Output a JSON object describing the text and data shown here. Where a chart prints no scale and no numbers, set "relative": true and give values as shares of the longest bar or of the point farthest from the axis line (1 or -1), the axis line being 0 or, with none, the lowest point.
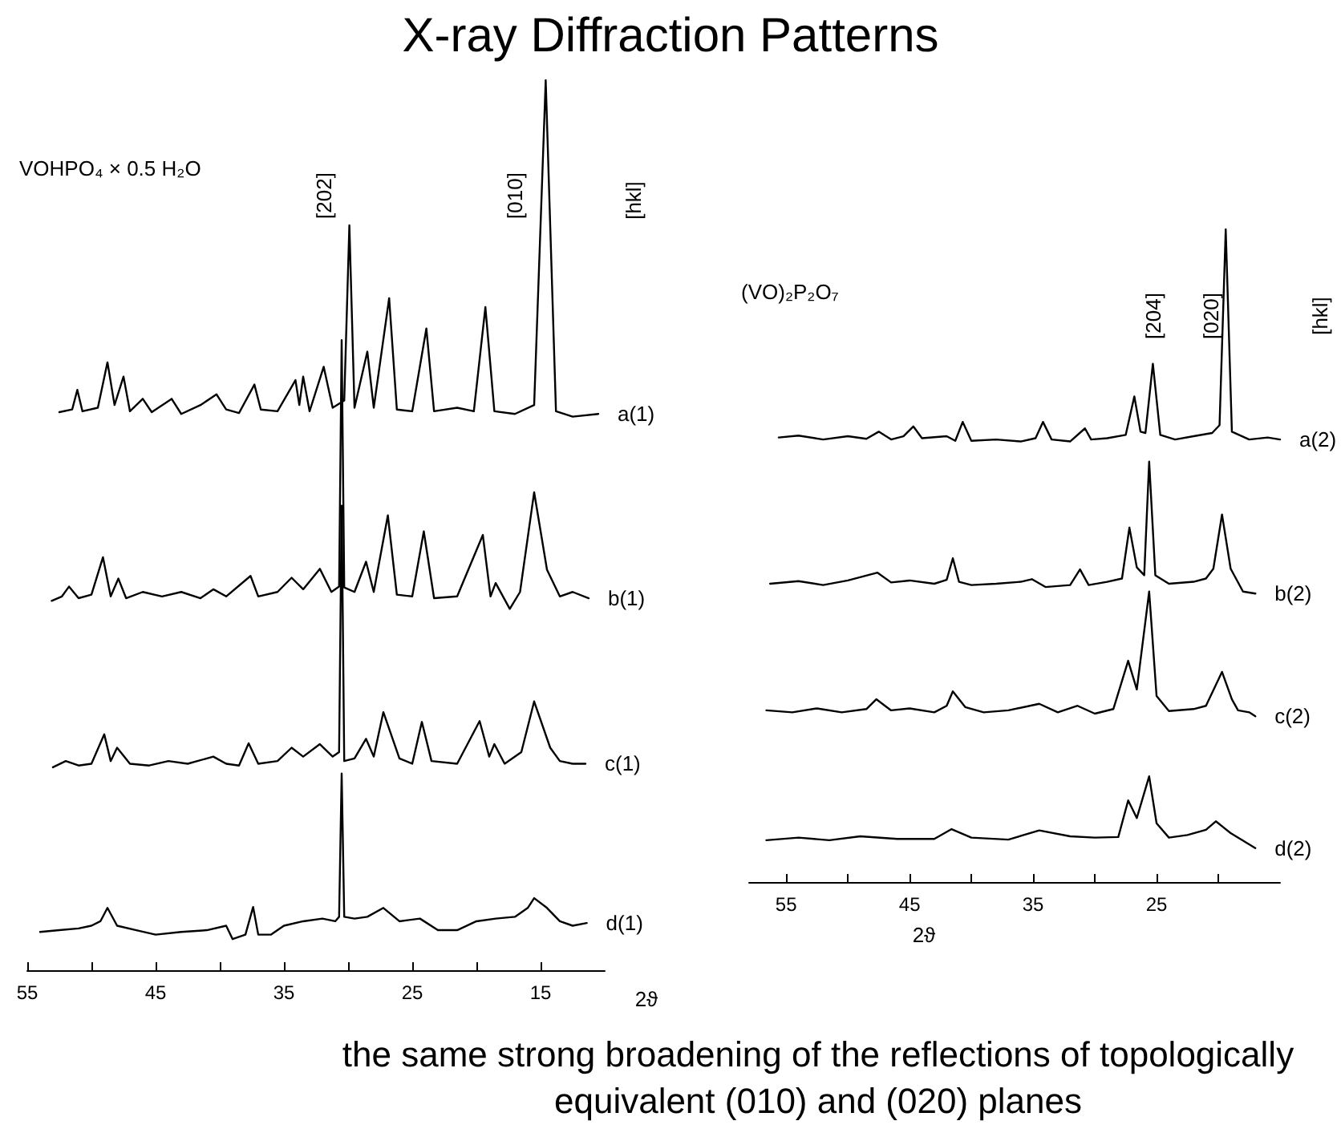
{
  "chart_data": [
    {
      "type": "line",
      "title": "X-ray Diffraction Patterns",
      "xlabel": "2ϑ",
      "relative": true,
      "marker": "none",
      "line_style": "solid",
      "xlim": [
        55,
        10
      ],
      "xticks": [
        55,
        {
          "value": 50,
          "label": null
        },
        45,
        {
          "value": 40,
          "label": null
        },
        35,
        {
          "value": 30,
          "label": null
        },
        25,
        {
          "value": 20,
          "label": null
        },
        15
      ],
      "annotations": [
        "VOHPO₄ × 0.5 H₂O",
        "[hkl]",
        "[202]",
        "[010]"
      ],
      "series": [
        {
          "name": "a(1)",
          "color": "#000000",
          "x": [
            52.5,
            51.5,
            51.1,
            50.7,
            49.5,
            48.75,
            48.2,
            47.5,
            47.0,
            46.0,
            45.3,
            43.75,
            43.0,
            41.5,
            40.25,
            39.5,
            38.5,
            37.3,
            36.8,
            35.5,
            34.1,
            33.8,
            33.5,
            33.0,
            31.9,
            31.2,
            30.3,
            29.9,
            29.5,
            28.5,
            28.0,
            26.8,
            26.2,
            25.0,
            23.9,
            23.3,
            21.5,
            20.2,
            19.3,
            18.6,
            17.0,
            15.5,
            14.6,
            13.8,
            12.5,
            10.5
          ],
          "values": [
            0.627,
            0.63,
            0.652,
            0.628,
            0.632,
            0.683,
            0.635,
            0.667,
            0.628,
            0.642,
            0.627,
            0.642,
            0.625,
            0.635,
            0.647,
            0.63,
            0.626,
            0.658,
            0.63,
            0.628,
            0.663,
            0.635,
            0.667,
            0.628,
            0.678,
            0.632,
            0.64,
            0.837,
            0.632,
            0.695,
            0.632,
            0.755,
            0.63,
            0.628,
            0.721,
            0.628,
            0.632,
            0.628,
            0.745,
            0.628,
            0.625,
            0.635,
            1.0,
            0.628,
            0.622,
            0.625
          ]
        },
        {
          "name": "b(1)",
          "color": "#000000",
          "x": [
            53.1,
            52.3,
            51.75,
            51.0,
            50.0,
            49.1,
            48.5,
            47.9,
            47.3,
            46.0,
            44.5,
            43.0,
            41.5,
            40.5,
            39.5,
            37.6,
            37.0,
            35.5,
            34.4,
            33.5,
            32.2,
            31.3,
            30.7,
            30.5,
            30.3,
            29.5,
            28.6,
            28.0,
            26.9,
            26.2,
            25.0,
            24.1,
            23.3,
            21.5,
            19.5,
            18.9,
            18.5,
            17.4,
            16.6,
            15.5,
            14.5,
            13.5,
            12.5,
            11.25
          ],
          "values": [
            0.415,
            0.42,
            0.431,
            0.418,
            0.422,
            0.464,
            0.42,
            0.44,
            0.418,
            0.425,
            0.42,
            0.425,
            0.418,
            0.428,
            0.42,
            0.443,
            0.42,
            0.425,
            0.441,
            0.428,
            0.451,
            0.425,
            0.431,
            0.708,
            0.43,
            0.425,
            0.459,
            0.425,
            0.511,
            0.422,
            0.42,
            0.493,
            0.418,
            0.42,
            0.489,
            0.42,
            0.435,
            0.406,
            0.425,
            0.537,
            0.45,
            0.42,
            0.425,
            0.418
          ]
        },
        {
          "name": "c(1)",
          "color": "#000000",
          "x": [
            53.0,
            52.0,
            51.0,
            50.0,
            49.0,
            48.5,
            48.0,
            47.0,
            45.5,
            44.0,
            42.5,
            40.5,
            39.5,
            38.5,
            37.75,
            37.0,
            35.5,
            34.4,
            33.5,
            32.2,
            31.2,
            30.7,
            30.5,
            30.3,
            29.5,
            28.6,
            28.0,
            27.25,
            26.0,
            25.0,
            24.25,
            23.5,
            21.5,
            19.75,
            19.0,
            18.6,
            17.8,
            16.5,
            15.5,
            14.25,
            13.5,
            12.5,
            11.5
          ],
          "values": [
            0.228,
            0.235,
            0.23,
            0.232,
            0.265,
            0.235,
            0.25,
            0.232,
            0.23,
            0.235,
            0.232,
            0.24,
            0.232,
            0.23,
            0.255,
            0.232,
            0.235,
            0.25,
            0.24,
            0.254,
            0.24,
            0.245,
            0.522,
            0.235,
            0.238,
            0.26,
            0.24,
            0.29,
            0.238,
            0.232,
            0.279,
            0.235,
            0.232,
            0.28,
            0.24,
            0.254,
            0.232,
            0.245,
            0.302,
            0.25,
            0.235,
            0.232,
            0.232
          ]
        },
        {
          "name": "d(1)",
          "color": "#000000",
          "x": [
            54.0,
            52.5,
            51.0,
            50.0,
            49.3,
            48.75,
            48.0,
            46.5,
            45.0,
            43.0,
            41.0,
            39.5,
            39.0,
            38.0,
            37.4,
            37.0,
            36.0,
            35.0,
            33.5,
            32.0,
            31.0,
            30.7,
            30.5,
            30.3,
            29.5,
            28.5,
            27.25,
            26.0,
            24.4,
            23.0,
            21.5,
            20.0,
            18.5,
            17.0,
            16.0,
            15.5,
            14.5,
            13.5,
            12.5,
            11.4
          ],
          "values": [
            0.043,
            0.045,
            0.047,
            0.05,
            0.055,
            0.07,
            0.05,
            0.045,
            0.04,
            0.043,
            0.045,
            0.05,
            0.035,
            0.04,
            0.071,
            0.04,
            0.04,
            0.05,
            0.055,
            0.058,
            0.055,
            0.06,
            0.221,
            0.06,
            0.058,
            0.06,
            0.07,
            0.055,
            0.058,
            0.045,
            0.045,
            0.055,
            0.058,
            0.06,
            0.07,
            0.081,
            0.07,
            0.055,
            0.05,
            0.053
          ]
        }
      ]
    },
    {
      "type": "line",
      "xlabel": "2ϑ",
      "relative": true,
      "marker": "none",
      "line_style": "solid",
      "xlim": [
        58,
        15
      ],
      "xticks": [
        55,
        {
          "value": 50,
          "label": null
        },
        45,
        {
          "value": 40,
          "label": null
        },
        35,
        {
          "value": 30,
          "label": null
        },
        25,
        {
          "value": 20,
          "label": null
        }
      ],
      "annotations": [
        "(VO)₂P₂O₇",
        "[hkl]",
        "[204]",
        "[020]",
        "the same strong broadening of the reflections of topologically equivalent (010) and (020) planes"
      ],
      "series": [
        {
          "name": "a(2)",
          "color": "#000000",
          "x": [
            55.6,
            54.0,
            52.0,
            50.0,
            48.5,
            47.5,
            46.5,
            45.5,
            44.7,
            44.0,
            42.0,
            41.3,
            40.7,
            40.0,
            38.0,
            36.0,
            34.8,
            34.2,
            33.5,
            32.0,
            30.8,
            30.3,
            29.0,
            27.5,
            26.8,
            26.3,
            25.9,
            25.3,
            24.7,
            23.5,
            22.0,
            20.5,
            19.9,
            19.4,
            18.9,
            17.5,
            16.0,
            15.0
          ],
          "values": [
            0.681,
            0.684,
            0.678,
            0.683,
            0.679,
            0.69,
            0.678,
            0.683,
            0.698,
            0.68,
            0.683,
            0.676,
            0.705,
            0.676,
            0.678,
            0.675,
            0.68,
            0.705,
            0.678,
            0.675,
            0.695,
            0.678,
            0.68,
            0.685,
            0.744,
            0.69,
            0.688,
            0.794,
            0.685,
            0.678,
            0.683,
            0.688,
            0.7,
            1.0,
            0.69,
            0.678,
            0.681,
            0.678
          ]
        },
        {
          "name": "b(2)",
          "color": "#000000",
          "x": [
            56.3,
            54.0,
            52.0,
            50.0,
            47.6,
            46.5,
            45.0,
            43.0,
            42.0,
            41.5,
            41.0,
            40.0,
            38.0,
            36.0,
            35.1,
            34.0,
            32.0,
            31.2,
            30.5,
            29.0,
            27.8,
            27.2,
            26.6,
            26.0,
            25.6,
            25.1,
            24.0,
            22.0,
            21.0,
            20.4,
            19.7,
            19.0,
            18.0,
            17.0
          ],
          "values": [
            0.457,
            0.461,
            0.455,
            0.462,
            0.474,
            0.459,
            0.462,
            0.457,
            0.463,
            0.496,
            0.46,
            0.455,
            0.457,
            0.46,
            0.464,
            0.452,
            0.455,
            0.479,
            0.455,
            0.46,
            0.465,
            0.543,
            0.482,
            0.47,
            0.644,
            0.47,
            0.457,
            0.46,
            0.465,
            0.48,
            0.563,
            0.48,
            0.445,
            0.442
          ]
        },
        {
          "name": "c(2)",
          "color": "#000000",
          "x": [
            56.6,
            54.5,
            52.5,
            50.5,
            48.5,
            47.7,
            46.5,
            45.0,
            43.0,
            42.0,
            41.5,
            40.5,
            39.0,
            37.0,
            34.5,
            33.0,
            31.4,
            30.0,
            28.5,
            27.3,
            26.6,
            25.6,
            25.0,
            24.0,
            22.0,
            21.0,
            19.7,
            18.9,
            18.4,
            17.5,
            17.0
          ],
          "values": [
            0.263,
            0.26,
            0.266,
            0.26,
            0.265,
            0.28,
            0.263,
            0.266,
            0.26,
            0.27,
            0.292,
            0.268,
            0.26,
            0.263,
            0.273,
            0.26,
            0.27,
            0.258,
            0.265,
            0.339,
            0.295,
            0.445,
            0.285,
            0.262,
            0.265,
            0.27,
            0.322,
            0.28,
            0.263,
            0.26,
            0.254
          ]
        },
        {
          "name": "d(2)",
          "color": "#000000",
          "x": [
            56.6,
            54.0,
            51.5,
            49.0,
            46.0,
            43.0,
            41.6,
            40.0,
            37.0,
            34.5,
            32.0,
            30.0,
            28.1,
            27.3,
            26.6,
            25.6,
            25.0,
            24.0,
            22.5,
            21.0,
            20.2,
            19.0,
            17.0
          ],
          "values": [
            0.064,
            0.068,
            0.064,
            0.07,
            0.066,
            0.066,
            0.081,
            0.068,
            0.065,
            0.079,
            0.07,
            0.068,
            0.069,
            0.125,
            0.098,
            0.162,
            0.09,
            0.068,
            0.072,
            0.08,
            0.093,
            0.075,
            0.052
          ]
        }
      ]
    }
  ]
}
